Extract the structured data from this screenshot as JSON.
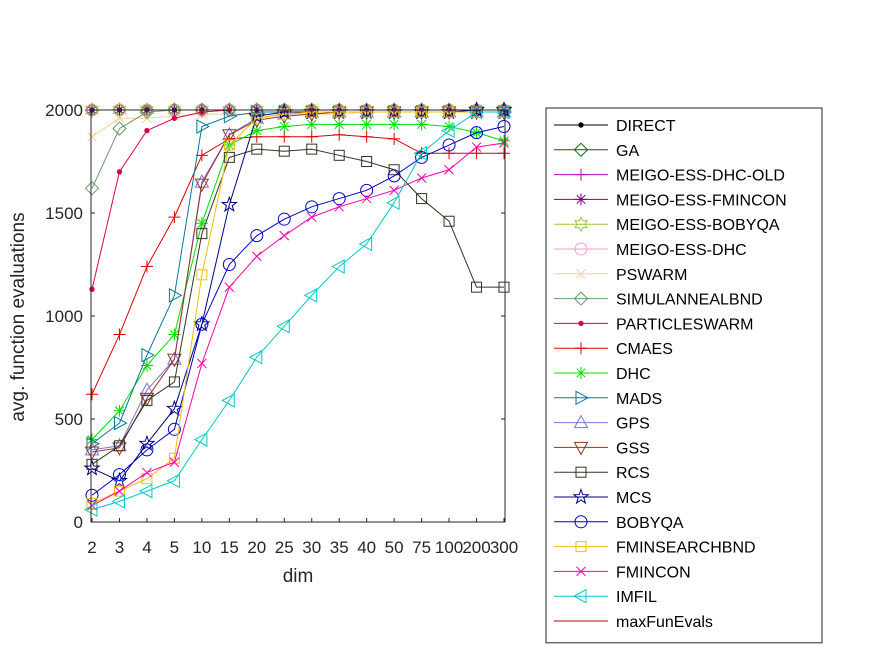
{
  "chart_data": {
    "type": "line",
    "xlabel": "dim",
    "ylabel": "avg. function evaluations",
    "categories": [
      "2",
      "3",
      "4",
      "5",
      "10",
      "15",
      "20",
      "25",
      "30",
      "35",
      "40",
      "50",
      "75",
      "100",
      "200",
      "300"
    ],
    "ylim": [
      0,
      2000
    ],
    "yticks": [
      0,
      500,
      1000,
      1500,
      2000
    ],
    "grid": false,
    "legend": "right",
    "series": [
      {
        "name": "DIRECT",
        "color": "#000000",
        "marker": "dot",
        "values": [
          2000,
          2000,
          2000,
          2000,
          2000,
          2000,
          2000,
          2000,
          2000,
          2000,
          2000,
          2000,
          2000,
          2000,
          2000,
          2000
        ]
      },
      {
        "name": "GA",
        "color": "#006400",
        "marker": "diamond",
        "values": [
          2000,
          2000,
          2000,
          2000,
          2000,
          2000,
          2000,
          2000,
          2000,
          2000,
          2000,
          2000,
          2000,
          2000,
          2000,
          2000
        ]
      },
      {
        "name": "MEIGO-ESS-DHC-OLD",
        "color": "#c000c0",
        "marker": "plus",
        "values": [
          2000,
          2000,
          2000,
          2000,
          2000,
          2000,
          2000,
          2000,
          2000,
          2000,
          2000,
          2000,
          2000,
          2000,
          2000,
          2000
        ]
      },
      {
        "name": "MEIGO-ESS-FMINCON",
        "color": "#800080",
        "marker": "asterisk",
        "values": [
          2000,
          2000,
          2000,
          2000,
          2000,
          2000,
          2000,
          2000,
          2000,
          2000,
          2000,
          2000,
          2000,
          2000,
          2000,
          2000
        ]
      },
      {
        "name": "MEIGO-ESS-BOBYQA",
        "color": "#99cc33",
        "marker": "hexagram",
        "values": [
          2000,
          2000,
          2000,
          2000,
          2000,
          2000,
          2000,
          2000,
          2000,
          2000,
          2000,
          2000,
          2000,
          2000,
          2000,
          2000
        ]
      },
      {
        "name": "MEIGO-ESS-DHC",
        "color": "#ff99cc",
        "marker": "circle",
        "values": [
          2000,
          2000,
          2000,
          2000,
          2000,
          2000,
          2000,
          2000,
          2000,
          2000,
          2000,
          2000,
          2000,
          2000,
          2000,
          2000
        ]
      },
      {
        "name": "PSWARM",
        "color": "#ffcc99",
        "marker": "x",
        "values": [
          1870,
          1960,
          1960,
          1970,
          1980,
          1980,
          1980,
          1980,
          1980,
          1980,
          1990,
          1990,
          1990,
          1990,
          1990,
          1990
        ]
      },
      {
        "name": "SIMULANNEALBND",
        "color": "#669966",
        "marker": "diamond",
        "values": [
          1620,
          1910,
          1990,
          2000,
          2000,
          2000,
          2000,
          2000,
          2000,
          2000,
          2000,
          2000,
          2000,
          2000,
          2000,
          2000
        ]
      },
      {
        "name": "PARTICLESWARM",
        "color": "#e0004a",
        "marker": "dot",
        "values": [
          1130,
          1700,
          1900,
          1960,
          1990,
          2000,
          2000,
          2000,
          2000,
          2000,
          2000,
          2000,
          2000,
          2000,
          2000,
          2000
        ]
      },
      {
        "name": "CMAES",
        "color": "#e00000",
        "marker": "plus",
        "values": [
          620,
          910,
          1240,
          1480,
          1780,
          1860,
          1870,
          1870,
          1870,
          1880,
          1870,
          1860,
          1790,
          1790,
          1790,
          1790
        ]
      },
      {
        "name": "DHC",
        "color": "#00e000",
        "marker": "asterisk",
        "values": [
          400,
          540,
          760,
          910,
          1450,
          1830,
          1900,
          1920,
          1930,
          1930,
          1930,
          1930,
          1930,
          1920,
          1890,
          1850
        ]
      },
      {
        "name": "MADS",
        "color": "#007a99",
        "marker": "triangle-right",
        "values": [
          380,
          480,
          810,
          1100,
          1920,
          1970,
          1990,
          1990,
          1990,
          1990,
          1990,
          1990,
          1990,
          1990,
          1990,
          1990
        ]
      },
      {
        "name": "GPS",
        "color": "#7777dd",
        "marker": "triangle-up",
        "values": [
          350,
          370,
          640,
          790,
          1650,
          1880,
          1960,
          1980,
          1990,
          1990,
          1990,
          1990,
          1990,
          1990,
          1990,
          1990
        ]
      },
      {
        "name": "GSS",
        "color": "#993322",
        "marker": "triangle-down",
        "values": [
          340,
          360,
          600,
          790,
          1640,
          1880,
          1950,
          1970,
          1980,
          1990,
          1990,
          1990,
          1990,
          1990,
          1990,
          1990
        ]
      },
      {
        "name": "RCS",
        "color": "#333322",
        "marker": "square",
        "values": [
          280,
          370,
          590,
          680,
          1400,
          1770,
          1810,
          1800,
          1810,
          1780,
          1750,
          1710,
          1570,
          1460,
          1140,
          1140
        ]
      },
      {
        "name": "MCS",
        "color": "#000080",
        "marker": "pentagram",
        "values": [
          260,
          200,
          380,
          550,
          960,
          1540,
          1970,
          1990,
          1990,
          1990,
          1990,
          1990,
          1990,
          1990,
          2000,
          2000
        ]
      },
      {
        "name": "BOBYQA",
        "color": "#0000cc",
        "marker": "circle",
        "values": [
          130,
          230,
          350,
          450,
          960,
          1250,
          1390,
          1470,
          1530,
          1570,
          1610,
          1680,
          1770,
          1830,
          1890,
          1920
        ]
      },
      {
        "name": "FMINSEARCHBND",
        "color": "#f0c000",
        "marker": "square",
        "values": [
          90,
          150,
          210,
          310,
          1200,
          1830,
          1960,
          1980,
          1990,
          1990,
          1990,
          1990,
          1990,
          1990,
          1990,
          1990
        ]
      },
      {
        "name": "FMINCON",
        "color": "#ff00aa",
        "marker": "x",
        "values": [
          80,
          150,
          240,
          290,
          770,
          1140,
          1290,
          1390,
          1480,
          1530,
          1570,
          1610,
          1670,
          1710,
          1820,
          1840
        ]
      },
      {
        "name": "IMFIL",
        "color": "#00c8c8",
        "marker": "triangle-left",
        "values": [
          60,
          100,
          150,
          200,
          400,
          590,
          800,
          950,
          1100,
          1240,
          1350,
          1550,
          1790,
          1900,
          1990,
          1990
        ]
      },
      {
        "name": "maxFunEvals",
        "color": "#bb0000",
        "marker": "none",
        "values": [
          2000,
          2000,
          2000,
          2000,
          2000,
          2000,
          2000,
          2000,
          2000,
          2000,
          2000,
          2000,
          2000,
          2000,
          2000,
          2000
        ]
      }
    ]
  }
}
